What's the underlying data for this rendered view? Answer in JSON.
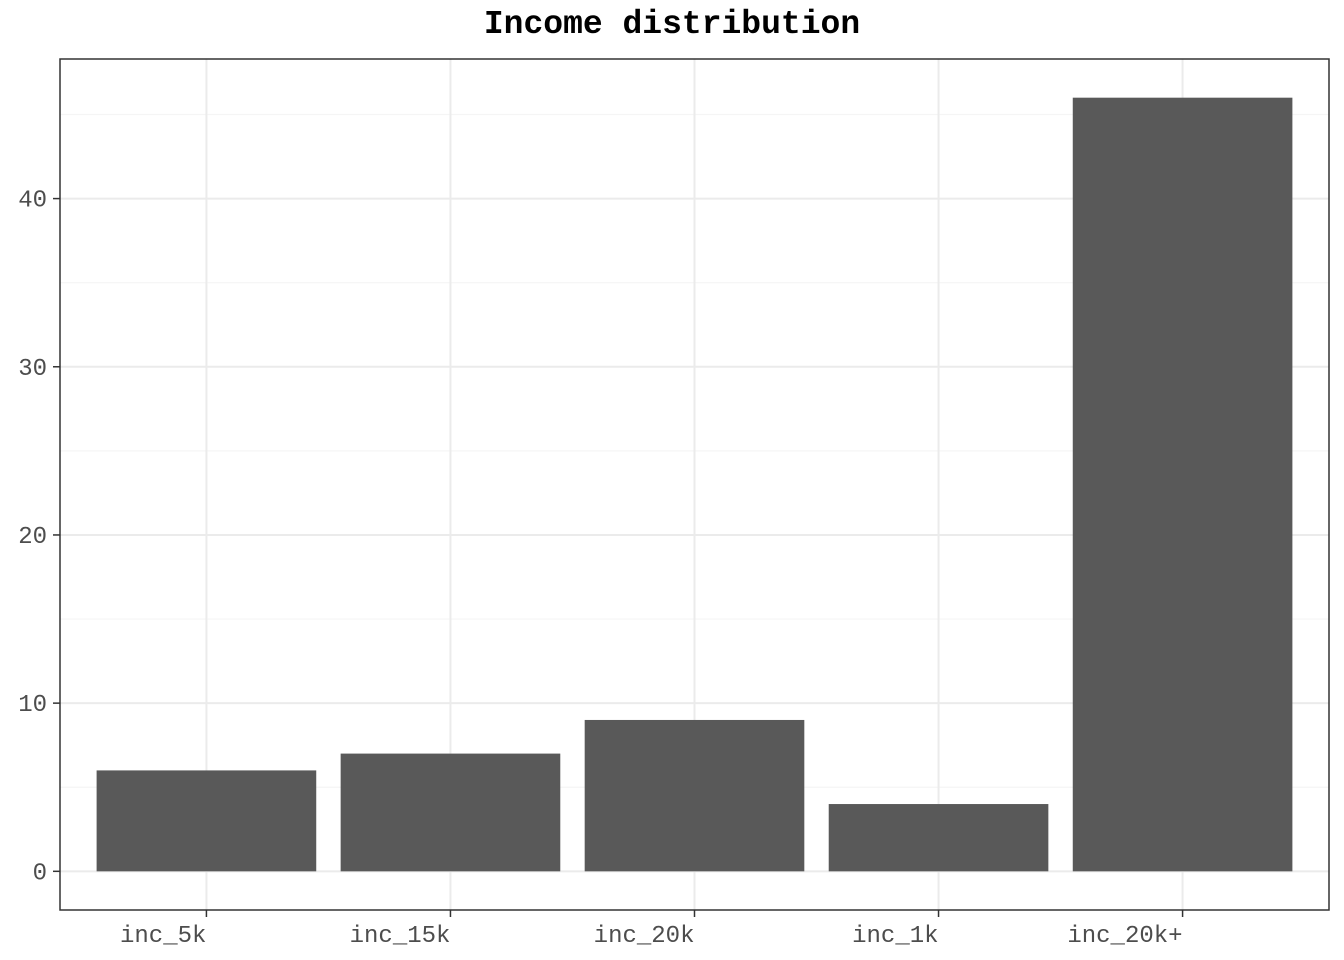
{
  "chart_data": {
    "type": "bar",
    "title": "Income distribution",
    "xlabel": "",
    "ylabel": "",
    "categories": [
      "inc_5k",
      "inc_15k",
      "inc_20k",
      "inc_1k",
      "inc_20k+"
    ],
    "values": [
      6,
      7,
      9,
      4,
      46
    ],
    "ylim": [
      -2.3,
      48.3
    ],
    "yticks": [
      0,
      10,
      20,
      30,
      40
    ],
    "grid": true,
    "legend": "none",
    "colors": {
      "bar": "#595959",
      "grid_major": "#ebebeb",
      "grid_minor": "#f5f5f5",
      "border": "#333333",
      "tick_text": "#4d4d4d"
    }
  }
}
